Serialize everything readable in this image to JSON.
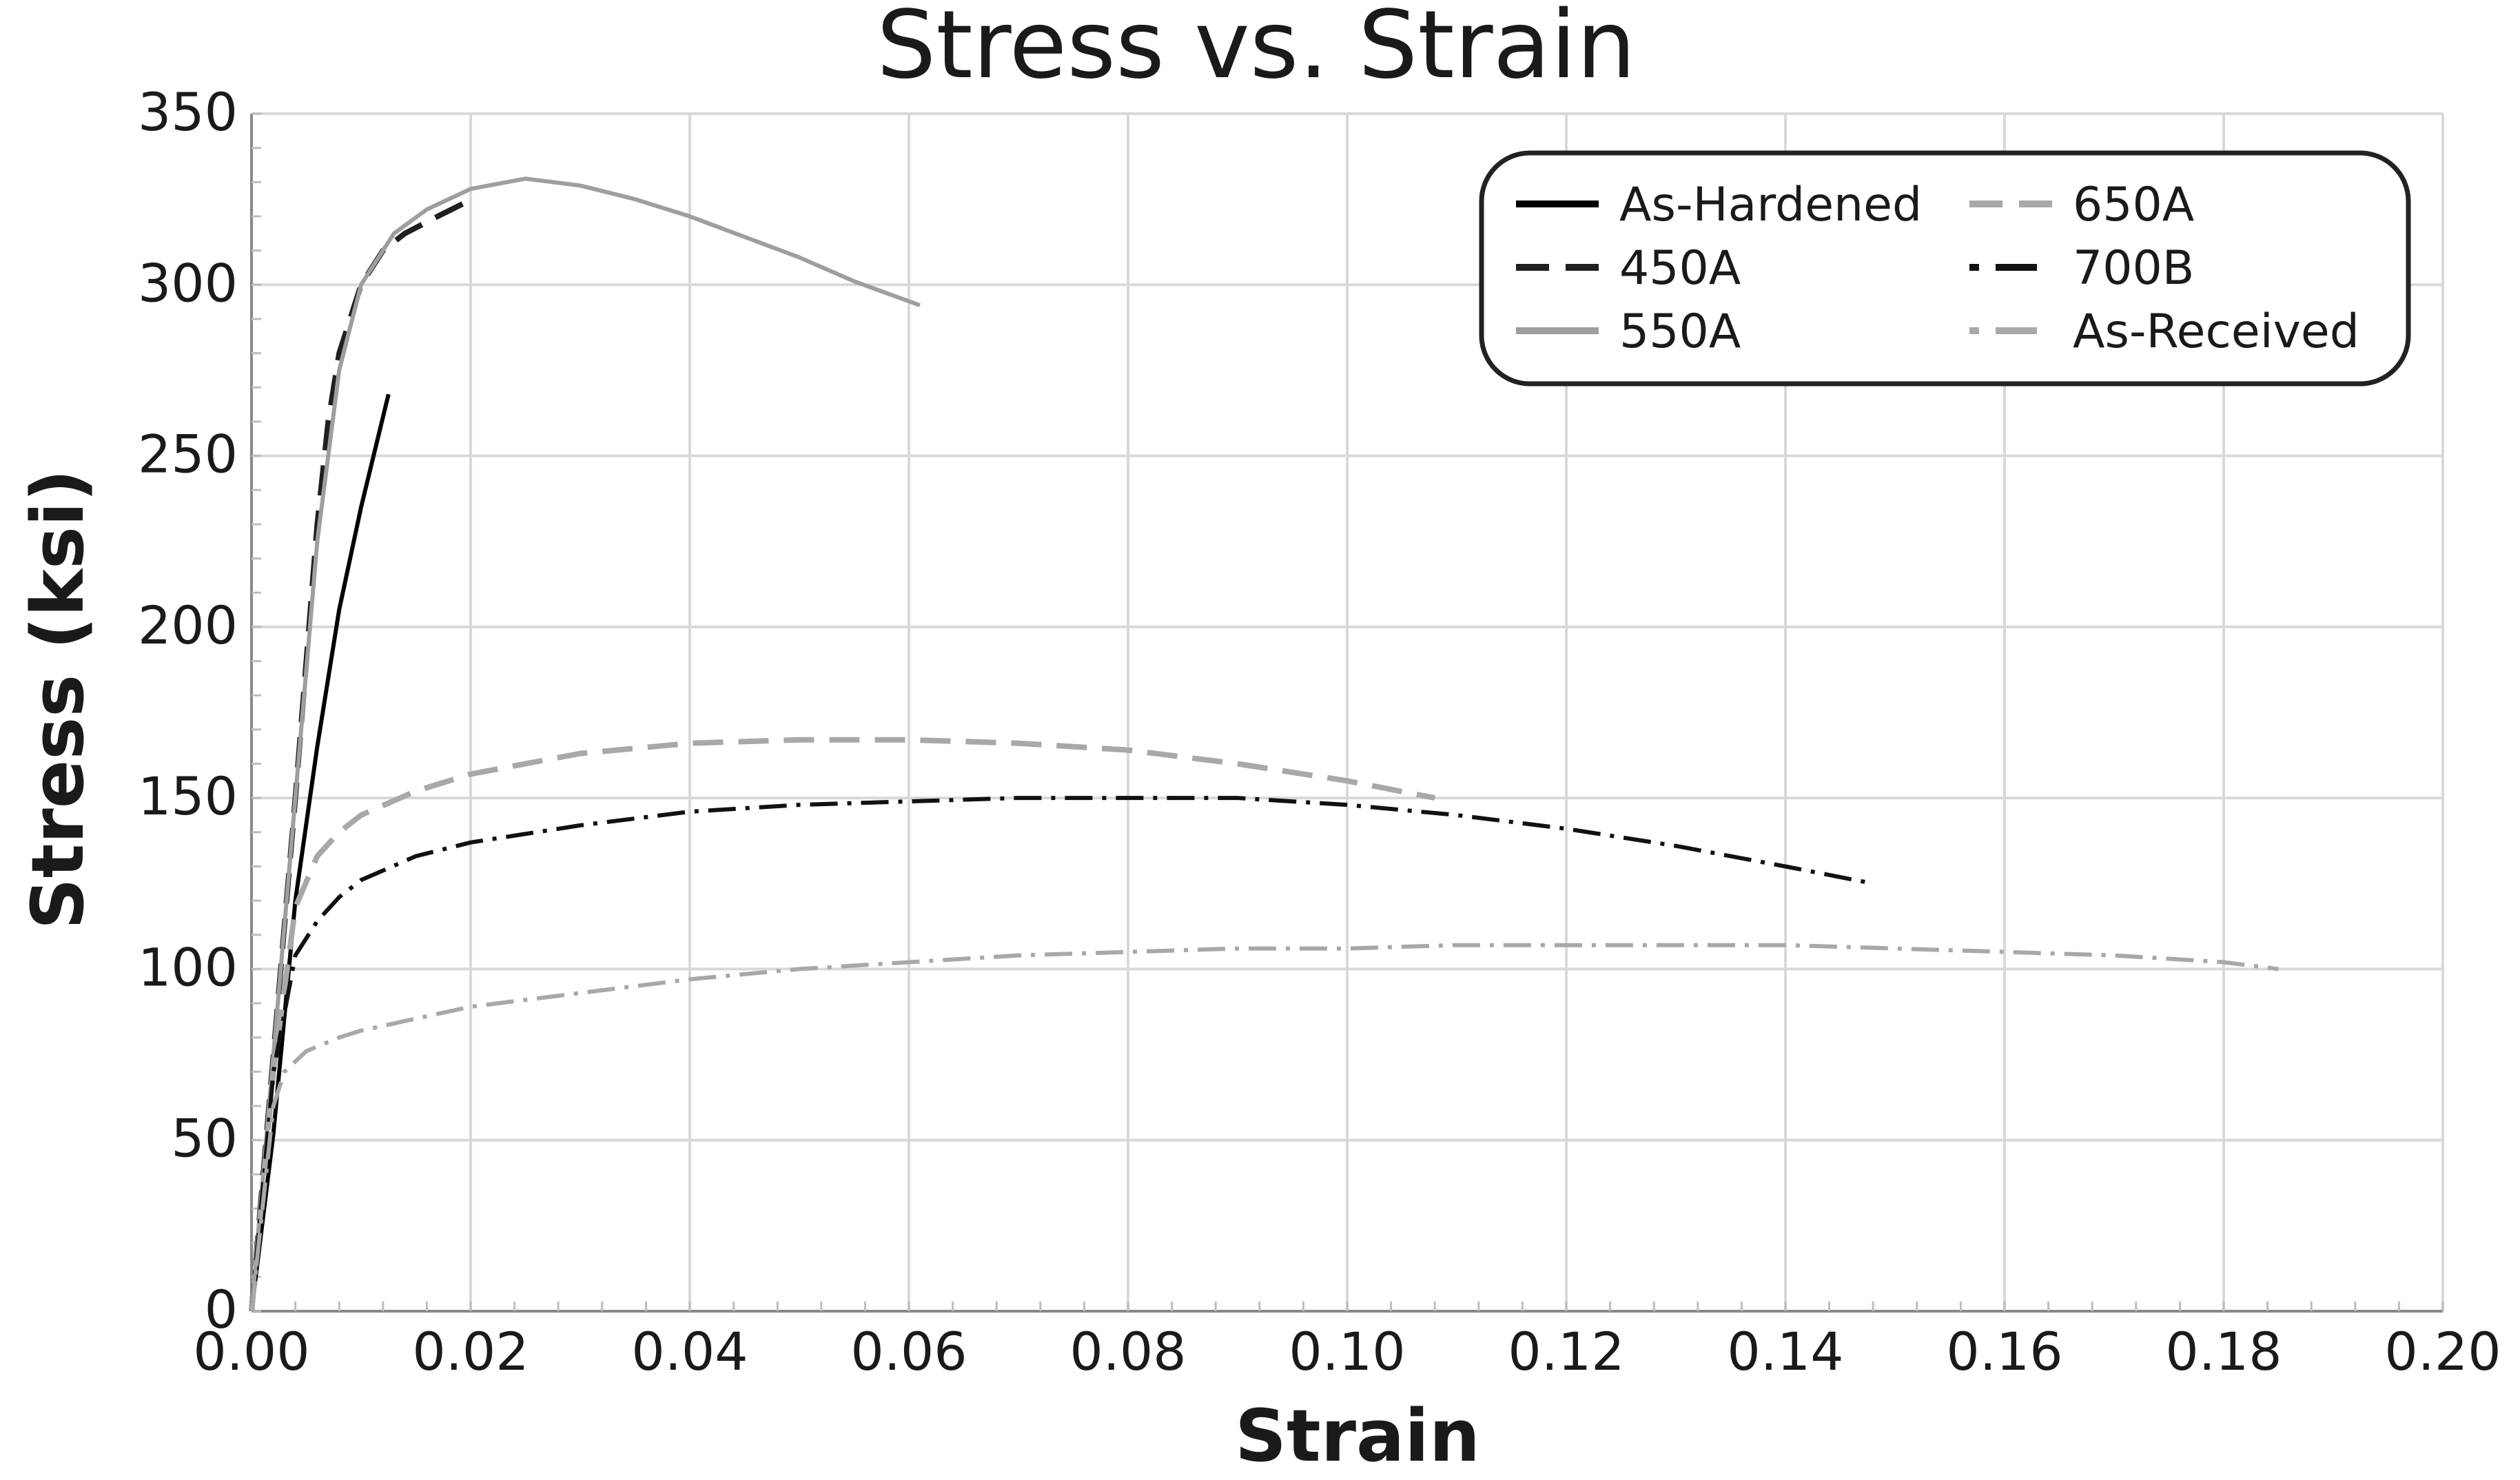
{
  "chart_data": {
    "type": "line",
    "title": "Stress vs. Strain",
    "xlabel": "Strain",
    "ylabel": "Stress (ksi)",
    "xlim": [
      0,
      0.2
    ],
    "ylim": [
      0,
      350
    ],
    "grid": true,
    "legend_position": "top-right",
    "x_ticks": [
      0,
      0.02,
      0.04,
      0.06,
      0.08,
      0.1,
      0.12,
      0.14,
      0.16,
      0.18,
      0.2
    ],
    "x_tick_labels": [
      "0.00",
      "0.02",
      "0.04",
      "0.06",
      "0.08",
      "0.10",
      "0.12",
      "0.14",
      "0.16",
      "0.18",
      "0.20"
    ],
    "y_ticks": [
      0,
      50,
      100,
      150,
      200,
      250,
      300,
      350
    ],
    "y_tick_labels": [
      "0",
      "50",
      "100",
      "150",
      "200",
      "250",
      "300",
      "350"
    ],
    "series": [
      {
        "name": "As-Hardened",
        "color": "#000000",
        "style": "solid",
        "x": [
          0,
          0.002,
          0.004,
          0.006,
          0.008,
          0.01,
          0.0125
        ],
        "y": [
          0,
          52,
          120,
          165,
          205,
          235,
          268
        ]
      },
      {
        "name": "450A",
        "color": "#1f1f1f",
        "style": "dash",
        "x": [
          0,
          0.002,
          0.004,
          0.005,
          0.006,
          0.007,
          0.008,
          0.01,
          0.012,
          0.014,
          0.017,
          0.0195
        ],
        "y": [
          0,
          75,
          150,
          190,
          230,
          260,
          280,
          300,
          310,
          315,
          320,
          324
        ]
      },
      {
        "name": "550A",
        "color": "#9e9e9e",
        "style": "solid",
        "x": [
          0,
          0.002,
          0.004,
          0.006,
          0.008,
          0.01,
          0.013,
          0.016,
          0.02,
          0.025,
          0.03,
          0.035,
          0.04,
          0.045,
          0.05,
          0.055,
          0.061
        ],
        "y": [
          0,
          75,
          150,
          225,
          275,
          300,
          315,
          322,
          328,
          331,
          329,
          325,
          320,
          314,
          308,
          301,
          294
        ]
      },
      {
        "name": "650A",
        "color": "#a8a8a8",
        "style": "dash",
        "x": [
          0,
          0.002,
          0.004,
          0.006,
          0.008,
          0.01,
          0.015,
          0.02,
          0.025,
          0.03,
          0.04,
          0.05,
          0.06,
          0.07,
          0.08,
          0.09,
          0.1,
          0.108
        ],
        "y": [
          0,
          70,
          118,
          133,
          140,
          145,
          152,
          157,
          160,
          163,
          166,
          167,
          167,
          166,
          164,
          160,
          155,
          150
        ]
      },
      {
        "name": "700B",
        "color": "#111111",
        "style": "dashdot",
        "x": [
          0,
          0.002,
          0.004,
          0.006,
          0.008,
          0.01,
          0.015,
          0.02,
          0.03,
          0.04,
          0.05,
          0.06,
          0.07,
          0.08,
          0.09,
          0.1,
          0.11,
          0.12,
          0.13,
          0.14,
          0.148
        ],
        "y": [
          0,
          70,
          104,
          114,
          121,
          126,
          133,
          137,
          142,
          146,
          148,
          149,
          150,
          150,
          150,
          148,
          145,
          141,
          136,
          130,
          125
        ]
      },
      {
        "name": "As-Received",
        "color": "#a8a8a8",
        "style": "dashdot",
        "x": [
          0,
          0.002,
          0.003,
          0.005,
          0.008,
          0.01,
          0.02,
          0.03,
          0.04,
          0.05,
          0.06,
          0.07,
          0.08,
          0.09,
          0.1,
          0.11,
          0.12,
          0.13,
          0.14,
          0.15,
          0.16,
          0.17,
          0.18,
          0.185
        ],
        "y": [
          0,
          60,
          70,
          76,
          80,
          82,
          89,
          93,
          97,
          100,
          102,
          104,
          105,
          106,
          106,
          107,
          107,
          107,
          107,
          106,
          105,
          104,
          102,
          100
        ]
      }
    ]
  }
}
